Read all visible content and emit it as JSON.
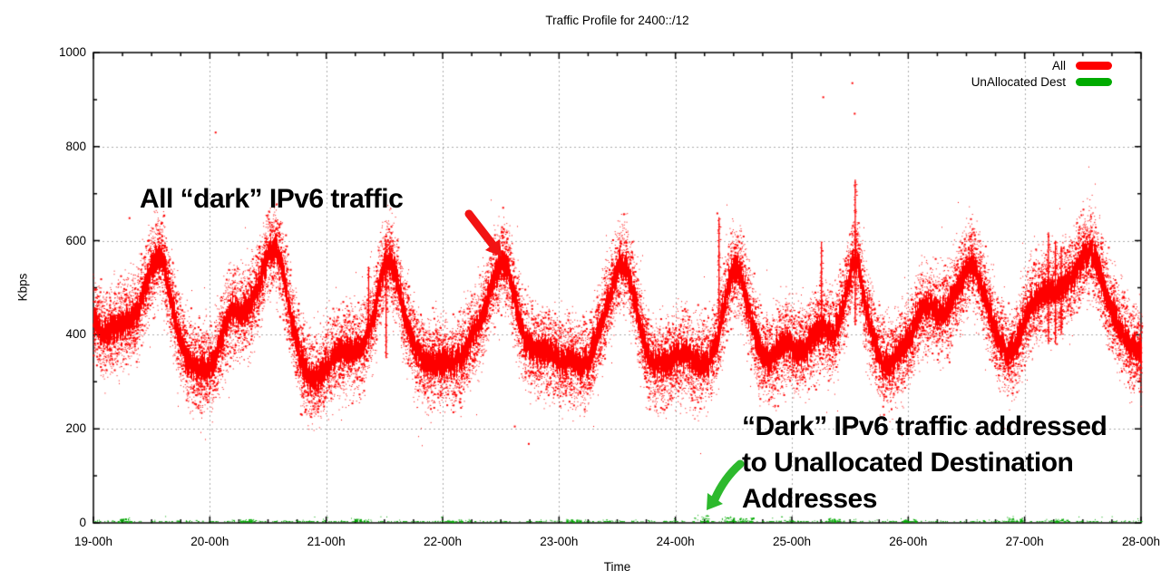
{
  "chart": {
    "title": "Traffic Profile for 2400::/12",
    "xlabel": "Time",
    "ylabel": "Kbps",
    "colors": {
      "grid": "#ababab",
      "frame": "#000000",
      "red_arrow": "#f21313",
      "green_arrow": "#2db92d"
    }
  },
  "legend": {
    "items": [
      {
        "label": "All",
        "color": "#fe0000"
      },
      {
        "label": "UnAllocated Dest",
        "color": "#00ab00"
      }
    ]
  },
  "annotations": {
    "all_dark_text": "All “dark” IPv6 traffic",
    "unallocated_line1": "“Dark” IPv6 traffic addressed",
    "unallocated_line2": "to Unallocated Destination",
    "unallocated_line3": "Addresses"
  },
  "chart_data": {
    "type": "scatter",
    "title": "Traffic Profile for 2400::/12",
    "xlabel": "Time",
    "ylabel": "Kbps",
    "xlim": [
      19,
      28
    ],
    "ylim": [
      0,
      1000
    ],
    "grid": true,
    "legend_position": "top-right-inside",
    "x_ticks": [
      {
        "v": 19,
        "label": "19-00h"
      },
      {
        "v": 20,
        "label": "20-00h"
      },
      {
        "v": 21,
        "label": "21-00h"
      },
      {
        "v": 22,
        "label": "22-00h"
      },
      {
        "v": 23,
        "label": "23-00h"
      },
      {
        "v": 24,
        "label": "24-00h"
      },
      {
        "v": 25,
        "label": "25-00h"
      },
      {
        "v": 26,
        "label": "26-00h"
      },
      {
        "v": 27,
        "label": "27-00h"
      },
      {
        "v": 28,
        "label": "28-00h"
      }
    ],
    "y_ticks": [
      {
        "v": 0,
        "label": "0"
      },
      {
        "v": 200,
        "label": "200"
      },
      {
        "v": 400,
        "label": "400"
      },
      {
        "v": 600,
        "label": "600"
      },
      {
        "v": 800,
        "label": "800"
      },
      {
        "v": 1000,
        "label": "1000"
      }
    ],
    "x_minor_step": 0.25,
    "y_minor_step": 100,
    "series": [
      {
        "name": "All",
        "color": "#fe0000",
        "style": "dots",
        "band_sigma_kbps": 40,
        "mean_profile": [
          [
            19.0,
            428
          ],
          [
            19.08,
            405
          ],
          [
            19.15,
            410
          ],
          [
            19.22,
            418
          ],
          [
            19.3,
            428
          ],
          [
            19.38,
            450
          ],
          [
            19.45,
            508
          ],
          [
            19.52,
            558
          ],
          [
            19.58,
            566
          ],
          [
            19.65,
            492
          ],
          [
            19.72,
            408
          ],
          [
            19.8,
            348
          ],
          [
            19.88,
            330
          ],
          [
            19.96,
            324
          ],
          [
            20.02,
            332
          ],
          [
            20.1,
            396
          ],
          [
            20.18,
            450
          ],
          [
            20.26,
            446
          ],
          [
            20.34,
            462
          ],
          [
            20.42,
            508
          ],
          [
            20.5,
            576
          ],
          [
            20.56,
            588
          ],
          [
            20.62,
            540
          ],
          [
            20.7,
            430
          ],
          [
            20.78,
            346
          ],
          [
            20.86,
            303
          ],
          [
            20.94,
            308
          ],
          [
            21.02,
            340
          ],
          [
            21.1,
            360
          ],
          [
            21.2,
            368
          ],
          [
            21.3,
            372
          ],
          [
            21.4,
            430
          ],
          [
            21.48,
            536
          ],
          [
            21.54,
            564
          ],
          [
            21.6,
            520
          ],
          [
            21.68,
            430
          ],
          [
            21.76,
            370
          ],
          [
            21.84,
            346
          ],
          [
            21.92,
            336
          ],
          [
            22.0,
            342
          ],
          [
            22.08,
            340
          ],
          [
            22.16,
            350
          ],
          [
            22.25,
            396
          ],
          [
            22.33,
            432
          ],
          [
            22.42,
            506
          ],
          [
            22.5,
            554
          ],
          [
            22.55,
            549
          ],
          [
            22.62,
            470
          ],
          [
            22.7,
            390
          ],
          [
            22.78,
            366
          ],
          [
            22.86,
            372
          ],
          [
            22.94,
            360
          ],
          [
            23.02,
            346
          ],
          [
            23.1,
            346
          ],
          [
            23.18,
            333
          ],
          [
            23.26,
            346
          ],
          [
            23.35,
            416
          ],
          [
            23.44,
            492
          ],
          [
            23.52,
            551
          ],
          [
            23.58,
            540
          ],
          [
            23.65,
            470
          ],
          [
            23.72,
            386
          ],
          [
            23.8,
            336
          ],
          [
            23.88,
            338
          ],
          [
            23.96,
            346
          ],
          [
            24.04,
            362
          ],
          [
            24.12,
            356
          ],
          [
            24.2,
            336
          ],
          [
            24.28,
            341
          ],
          [
            24.36,
            392
          ],
          [
            24.44,
            500
          ],
          [
            24.5,
            544
          ],
          [
            24.56,
            524
          ],
          [
            24.64,
            440
          ],
          [
            24.72,
            366
          ],
          [
            24.8,
            343
          ],
          [
            24.88,
            368
          ],
          [
            24.96,
            388
          ],
          [
            25.04,
            362
          ],
          [
            25.12,
            372
          ],
          [
            25.2,
            405
          ],
          [
            25.28,
            415
          ],
          [
            25.36,
            398
          ],
          [
            25.44,
            462
          ],
          [
            25.52,
            554
          ],
          [
            25.56,
            560
          ],
          [
            25.62,
            470
          ],
          [
            25.7,
            390
          ],
          [
            25.78,
            336
          ],
          [
            25.86,
            343
          ],
          [
            25.94,
            368
          ],
          [
            26.02,
            396
          ],
          [
            26.1,
            450
          ],
          [
            26.18,
            462
          ],
          [
            26.26,
            443
          ],
          [
            26.34,
            452
          ],
          [
            26.42,
            500
          ],
          [
            26.5,
            542
          ],
          [
            26.56,
            548
          ],
          [
            26.62,
            510
          ],
          [
            26.7,
            440
          ],
          [
            26.78,
            380
          ],
          [
            26.86,
            358
          ],
          [
            26.94,
            386
          ],
          [
            27.02,
            448
          ],
          [
            27.1,
            478
          ],
          [
            27.18,
            495
          ],
          [
            27.26,
            492
          ],
          [
            27.34,
            500
          ],
          [
            27.42,
            526
          ],
          [
            27.5,
            566
          ],
          [
            27.57,
            580
          ],
          [
            27.64,
            536
          ],
          [
            27.72,
            462
          ],
          [
            27.8,
            420
          ],
          [
            27.88,
            386
          ],
          [
            27.96,
            366
          ],
          [
            28.0,
            368
          ]
        ],
        "spikes": [
          [
            21.36,
            370,
            545
          ],
          [
            21.51,
            350,
            600
          ],
          [
            24.37,
            430,
            650
          ],
          [
            25.25,
            380,
            598
          ],
          [
            25.54,
            420,
            730
          ],
          [
            27.2,
            380,
            618
          ],
          [
            27.26,
            380,
            600
          ],
          [
            27.31,
            400,
            588
          ]
        ],
        "outliers": [
          [
            20.05,
            830
          ],
          [
            25.27,
            905
          ],
          [
            25.52,
            935
          ],
          [
            25.54,
            870
          ],
          [
            22.52,
            670
          ],
          [
            24.36,
            658
          ],
          [
            22.74,
            168
          ],
          [
            22.62,
            205
          ],
          [
            19.31,
            648
          ]
        ]
      },
      {
        "name": "UnAllocated Dest",
        "color": "#00ab00",
        "style": "dots",
        "value_range_kbps": [
          0,
          20
        ],
        "clusters": [
          [
            19.26,
            12
          ],
          [
            20.32,
            8
          ],
          [
            21.3,
            9
          ],
          [
            22.1,
            7
          ],
          [
            23.12,
            8
          ],
          [
            24.22,
            18
          ],
          [
            24.45,
            15
          ],
          [
            24.6,
            12
          ],
          [
            25.35,
            10
          ],
          [
            26.0,
            9
          ],
          [
            26.92,
            13
          ],
          [
            27.32,
            9
          ]
        ]
      }
    ]
  }
}
